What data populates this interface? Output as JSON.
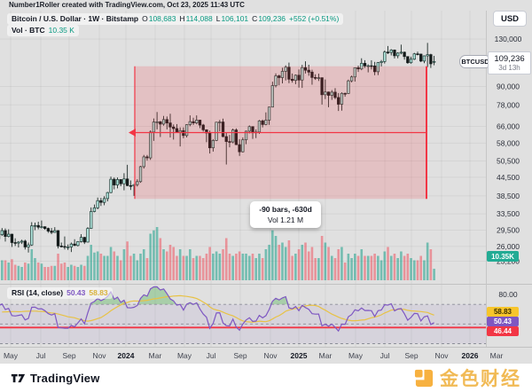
{
  "header": {
    "attribution": "Number1Roller created with TradingView.com, Oct 23, 2025 11:43 UTC"
  },
  "toolbar": {
    "currency_button": "USD"
  },
  "legend": {
    "symbol_line": {
      "title": "Bitcoin / U.S. Dollar · 1W · Bitstamp",
      "o_label": "O",
      "o": "108,683",
      "h_label": "H",
      "h": "114,088",
      "l_label": "L",
      "l": "106,101",
      "c_label": "C",
      "c": "109,236",
      "change": "+552 (+0.51%)"
    },
    "volume_line": {
      "label": "Vol · BTC",
      "value": "10.35 K"
    },
    "rsi_line": {
      "label": "RSI (14, close)",
      "rsi_value": "50.43",
      "ma_value": "58.83"
    }
  },
  "price_axis": {
    "labels": [
      {
        "value": 130000,
        "text": "130,000"
      },
      {
        "value": 90000,
        "text": "90,000"
      },
      {
        "value": 78000,
        "text": "78,000"
      },
      {
        "value": 66000,
        "text": "66,000"
      },
      {
        "value": 58000,
        "text": "58,000"
      },
      {
        "value": 50500,
        "text": "50,500"
      },
      {
        "value": 44500,
        "text": "44,500"
      },
      {
        "value": 38500,
        "text": "38,500"
      },
      {
        "value": 33500,
        "text": "33,500"
      },
      {
        "value": 29500,
        "text": "29,500"
      },
      {
        "value": 26000,
        "text": "26,000"
      },
      {
        "value": 23200,
        "text": "23,200"
      }
    ],
    "symbol_badge": "BTCUSD",
    "last_price": {
      "text": "109,236",
      "countdown": "3d 13h"
    },
    "volume_badge": "10.35K",
    "rsi_axis_label": {
      "value": 80,
      "text": "80.00"
    },
    "rsi_badges": [
      {
        "text": "58.83",
        "bg": "#f7c52b",
        "fg": "#3d3000"
      },
      {
        "text": "50.43",
        "bg": "#7e57c2",
        "fg": "#ffffff"
      },
      {
        "text": "46.44",
        "bg": "#f23645",
        "fg": "#ffffff"
      }
    ]
  },
  "time_axis": {
    "labels": [
      {
        "text": "May",
        "bold": false
      },
      {
        "text": "Jul",
        "bold": false
      },
      {
        "text": "Sep",
        "bold": false
      },
      {
        "text": "Nov",
        "bold": false
      },
      {
        "text": "2024",
        "bold": true
      },
      {
        "text": "Mar",
        "bold": false
      },
      {
        "text": "May",
        "bold": false
      },
      {
        "text": "Jul",
        "bold": false
      },
      {
        "text": "Sep",
        "bold": false
      },
      {
        "text": "Nov",
        "bold": false
      },
      {
        "text": "2025",
        "bold": true
      },
      {
        "text": "Mar",
        "bold": false
      },
      {
        "text": "May",
        "bold": false
      },
      {
        "text": "Jul",
        "bold": false
      },
      {
        "text": "Sep",
        "bold": false
      },
      {
        "text": "Nov",
        "bold": false
      },
      {
        "text": "2026",
        "bold": true
      },
      {
        "text": "Mar",
        "bold": false
      }
    ]
  },
  "drawing": {
    "range_tool": {
      "line1": "-90 bars, -630d",
      "line2": "Vol 1.21 M"
    }
  },
  "footer": {
    "logo_text": "TradingView",
    "watermark": "金色财经"
  },
  "chart_data": {
    "type": "candlestick+volume+rsi",
    "symbol": "BTCUSD",
    "interval": "1W",
    "scale": "log",
    "pre_bars": 28,
    "ohlcv_k": [
      [
        19.6,
        20.4,
        18.9,
        19.4,
        16
      ],
      [
        19.4,
        21.0,
        19.1,
        20.9,
        18
      ],
      [
        20.9,
        21.4,
        15.6,
        16.3,
        30
      ],
      [
        16.3,
        17.2,
        15.8,
        16.7,
        22
      ],
      [
        16.7,
        17.4,
        16.4,
        16.5,
        16
      ],
      [
        16.5,
        17.0,
        16.3,
        17.1,
        14
      ],
      [
        17.1,
        17.3,
        16.6,
        16.9,
        12
      ],
      [
        16.9,
        17.1,
        16.5,
        16.6,
        11
      ],
      [
        16.6,
        16.8,
        16.3,
        16.5,
        10
      ],
      [
        16.5,
        17.1,
        16.4,
        17.0,
        11
      ],
      [
        17.0,
        18.0,
        16.9,
        17.9,
        13
      ],
      [
        17.9,
        21.1,
        17.8,
        20.9,
        20
      ],
      [
        20.9,
        23.1,
        20.6,
        22.7,
        24
      ],
      [
        22.7,
        23.4,
        22.3,
        23.0,
        18
      ],
      [
        23.0,
        23.6,
        22.4,
        23.1,
        16
      ],
      [
        23.1,
        24.2,
        22.7,
        23.5,
        16
      ],
      [
        23.5,
        23.6,
        21.4,
        21.9,
        18
      ],
      [
        21.9,
        23.2,
        21.5,
        22.4,
        15
      ],
      [
        22.4,
        23.4,
        21.7,
        23.3,
        14
      ],
      [
        23.3,
        23.9,
        22.1,
        22.4,
        15
      ],
      [
        22.4,
        22.8,
        19.6,
        20.5,
        22
      ],
      [
        20.5,
        22.2,
        20.1,
        22.0,
        18
      ],
      [
        22.0,
        26.5,
        21.9,
        26.3,
        28
      ],
      [
        26.3,
        28.4,
        26.1,
        27.5,
        26
      ],
      [
        27.5,
        28.8,
        27.2,
        28.0,
        20
      ],
      [
        28.0,
        28.6,
        27.1,
        27.6,
        16
      ],
      [
        27.6,
        29.1,
        27.3,
        28.5,
        17
      ],
      [
        28.5,
        30.0,
        28.2,
        29.4,
        18
      ],
      [
        29.4,
        29.9,
        27.0,
        28.1,
        18
      ],
      [
        28.1,
        29.7,
        27.9,
        28.6,
        16
      ],
      [
        28.6,
        28.7,
        25.9,
        26.8,
        19
      ],
      [
        26.8,
        27.7,
        26.1,
        26.7,
        14
      ],
      [
        26.7,
        27.1,
        25.8,
        26.9,
        13
      ],
      [
        26.9,
        27.4,
        26.5,
        27.1,
        12
      ],
      [
        27.1,
        27.4,
        25.4,
        25.9,
        16
      ],
      [
        25.9,
        26.8,
        24.8,
        26.3,
        15
      ],
      [
        26.3,
        31.4,
        26.1,
        30.5,
        28
      ],
      [
        30.5,
        31.3,
        29.5,
        30.6,
        20
      ],
      [
        30.6,
        31.5,
        29.7,
        30.2,
        16
      ],
      [
        30.2,
        31.8,
        29.9,
        30.3,
        15
      ],
      [
        30.3,
        30.4,
        29.6,
        29.9,
        12
      ],
      [
        29.9,
        30.1,
        28.9,
        29.3,
        12
      ],
      [
        29.3,
        30.0,
        28.6,
        29.0,
        13
      ],
      [
        29.0,
        30.2,
        28.9,
        29.4,
        13
      ],
      [
        29.4,
        29.5,
        25.6,
        26.1,
        24
      ],
      [
        26.1,
        26.8,
        25.8,
        26.0,
        15
      ],
      [
        26.0,
        28.1,
        25.4,
        25.9,
        16
      ],
      [
        25.9,
        26.4,
        25.3,
        25.9,
        12
      ],
      [
        25.9,
        26.8,
        24.9,
        26.5,
        14
      ],
      [
        26.5,
        27.5,
        26.1,
        26.2,
        13
      ],
      [
        26.2,
        27.1,
        26.0,
        27.0,
        12
      ],
      [
        27.0,
        28.6,
        26.8,
        27.9,
        14
      ],
      [
        27.9,
        28.0,
        26.5,
        26.9,
        13
      ],
      [
        26.9,
        30.2,
        26.8,
        29.9,
        22
      ],
      [
        29.9,
        35.2,
        29.8,
        34.1,
        32
      ],
      [
        34.1,
        36.0,
        33.9,
        35.1,
        25
      ],
      [
        35.1,
        38.0,
        34.7,
        37.1,
        26
      ],
      [
        37.1,
        37.9,
        35.6,
        36.6,
        24
      ],
      [
        36.6,
        38.4,
        35.8,
        37.7,
        22
      ],
      [
        37.7,
        39.7,
        36.9,
        39.5,
        22
      ],
      [
        39.5,
        44.7,
        39.3,
        43.8,
        30
      ],
      [
        43.8,
        44.4,
        40.5,
        41.9,
        26
      ],
      [
        41.9,
        44.4,
        40.8,
        43.7,
        22
      ],
      [
        43.7,
        43.8,
        41.5,
        42.3,
        18
      ],
      [
        42.3,
        45.9,
        40.2,
        43.9,
        28
      ],
      [
        43.9,
        49.0,
        41.5,
        41.7,
        35
      ],
      [
        41.7,
        43.4,
        40.3,
        41.6,
        22
      ],
      [
        41.6,
        42.2,
        38.5,
        42.0,
        24
      ],
      [
        42.0,
        43.8,
        41.4,
        43.0,
        18
      ],
      [
        43.0,
        48.6,
        42.6,
        48.3,
        24
      ],
      [
        48.3,
        52.9,
        47.6,
        52.1,
        28
      ],
      [
        52.1,
        52.9,
        50.6,
        51.7,
        20
      ],
      [
        51.7,
        64.0,
        50.9,
        63.2,
        42
      ],
      [
        63.2,
        70.2,
        59.0,
        68.3,
        45
      ],
      [
        68.3,
        73.8,
        64.5,
        68.4,
        48
      ],
      [
        68.4,
        68.9,
        60.8,
        67.2,
        38
      ],
      [
        67.2,
        71.6,
        66.4,
        69.6,
        28
      ],
      [
        69.6,
        71.3,
        64.5,
        67.8,
        26
      ],
      [
        67.8,
        72.8,
        60.6,
        65.7,
        32
      ],
      [
        65.7,
        67.0,
        59.6,
        64.9,
        30
      ],
      [
        64.9,
        67.2,
        62.8,
        63.1,
        22
      ],
      [
        63.1,
        65.5,
        56.5,
        63.9,
        28
      ],
      [
        63.9,
        65.5,
        60.2,
        61.5,
        22
      ],
      [
        61.5,
        67.1,
        60.6,
        66.9,
        22
      ],
      [
        66.9,
        71.9,
        66.1,
        68.5,
        28
      ],
      [
        68.5,
        70.6,
        66.7,
        67.8,
        20
      ],
      [
        67.8,
        71.9,
        67.1,
        69.3,
        22
      ],
      [
        69.3,
        69.5,
        65.1,
        66.7,
        22
      ],
      [
        66.7,
        67.3,
        63.4,
        64.3,
        20
      ],
      [
        64.3,
        64.5,
        58.4,
        62.7,
        24
      ],
      [
        62.7,
        63.9,
        53.5,
        55.9,
        30
      ],
      [
        55.9,
        59.8,
        54.3,
        59.2,
        24
      ],
      [
        59.2,
        68.4,
        58.9,
        68.2,
        26
      ],
      [
        68.2,
        69.4,
        63.5,
        68.3,
        24
      ],
      [
        68.3,
        70.1,
        60.7,
        61.0,
        28
      ],
      [
        61.0,
        62.7,
        49.1,
        58.7,
        38
      ],
      [
        58.7,
        61.8,
        56.1,
        58.5,
        24
      ],
      [
        58.5,
        64.9,
        57.9,
        64.2,
        22
      ],
      [
        64.2,
        65.0,
        57.1,
        57.3,
        24
      ],
      [
        57.3,
        59.8,
        52.5,
        54.2,
        26
      ],
      [
        54.2,
        60.6,
        53.9,
        59.5,
        24
      ],
      [
        59.5,
        63.9,
        57.5,
        63.6,
        24
      ],
      [
        63.6,
        66.5,
        62.5,
        65.9,
        22
      ],
      [
        65.9,
        66.0,
        59.9,
        62.8,
        24
      ],
      [
        62.8,
        64.5,
        60.3,
        63.2,
        20
      ],
      [
        63.2,
        69.4,
        62.3,
        68.9,
        24
      ],
      [
        68.9,
        69.6,
        65.5,
        67.0,
        20
      ],
      [
        67.0,
        73.6,
        66.6,
        69.3,
        28
      ],
      [
        69.3,
        76.9,
        66.8,
        76.7,
        32
      ],
      [
        76.7,
        93.4,
        76.5,
        90.6,
        45
      ],
      [
        90.6,
        99.6,
        89.4,
        97.7,
        40
      ],
      [
        97.7,
        98.6,
        90.8,
        96.4,
        32
      ],
      [
        96.4,
        104.1,
        92.2,
        101.2,
        34
      ],
      [
        101.2,
        106.0,
        94.3,
        104.5,
        30
      ],
      [
        104.5,
        108.3,
        92.3,
        95.2,
        36
      ],
      [
        95.2,
        99.5,
        92.7,
        94.3,
        22
      ],
      [
        94.3,
        98.8,
        91.6,
        98.2,
        24
      ],
      [
        98.2,
        102.7,
        89.2,
        94.6,
        28
      ],
      [
        94.6,
        106.4,
        89.0,
        104.2,
        32
      ],
      [
        104.2,
        109.4,
        99.5,
        102.1,
        34
      ],
      [
        102.1,
        106.5,
        97.8,
        100.6,
        26
      ],
      [
        100.6,
        102.5,
        91.2,
        96.5,
        30
      ],
      [
        96.5,
        98.9,
        94.7,
        96.1,
        20
      ],
      [
        96.1,
        99.4,
        93.9,
        96.3,
        20
      ],
      [
        96.3,
        96.5,
        78.2,
        84.4,
        40
      ],
      [
        84.4,
        95.0,
        81.6,
        86.2,
        34
      ],
      [
        86.2,
        86.5,
        76.6,
        84.0,
        30
      ],
      [
        84.0,
        87.5,
        81.1,
        86.1,
        22
      ],
      [
        86.1,
        88.8,
        81.6,
        82.6,
        20
      ],
      [
        82.6,
        85.5,
        74.4,
        78.4,
        28
      ],
      [
        78.4,
        86.0,
        74.6,
        85.3,
        30
      ],
      [
        85.3,
        85.8,
        83.1,
        85.2,
        16
      ],
      [
        85.2,
        94.9,
        84.9,
        94.0,
        24
      ],
      [
        94.0,
        97.9,
        92.9,
        96.9,
        20
      ],
      [
        96.9,
        104.3,
        93.5,
        104.1,
        24
      ],
      [
        104.1,
        105.8,
        100.7,
        103.1,
        22
      ],
      [
        103.1,
        112.0,
        102.1,
        107.7,
        28
      ],
      [
        107.7,
        110.3,
        103.9,
        105.6,
        22
      ],
      [
        105.6,
        106.8,
        100.4,
        105.7,
        22
      ],
      [
        105.7,
        110.3,
        102.7,
        105.5,
        22
      ],
      [
        105.5,
        108.9,
        98.2,
        100.9,
        24
      ],
      [
        100.9,
        108.8,
        98.3,
        108.3,
        22
      ],
      [
        108.3,
        110.5,
        105.1,
        109.2,
        18
      ],
      [
        109.2,
        118.9,
        107.5,
        117.5,
        26
      ],
      [
        117.5,
        123.2,
        115.7,
        117.2,
        30
      ],
      [
        117.2,
        120.2,
        114.5,
        119.4,
        22
      ],
      [
        119.4,
        119.8,
        111.9,
        114.2,
        24
      ],
      [
        114.2,
        117.4,
        112.0,
        116.6,
        20
      ],
      [
        116.6,
        124.5,
        115.5,
        117.4,
        26
      ],
      [
        117.4,
        118.0,
        110.8,
        113.5,
        22
      ],
      [
        113.5,
        113.6,
        107.3,
        108.2,
        24
      ],
      [
        108.2,
        113.4,
        107.4,
        111.2,
        20
      ],
      [
        111.2,
        116.8,
        110.5,
        115.9,
        18
      ],
      [
        115.9,
        117.9,
        114.6,
        115.7,
        18
      ],
      [
        115.7,
        116.1,
        108.7,
        109.6,
        22
      ],
      [
        109.6,
        114.5,
        107.8,
        114.1,
        18
      ],
      [
        114.1,
        126.2,
        104.6,
        115.2,
        34
      ],
      [
        115.2,
        116.0,
        103.9,
        107.3,
        28
      ],
      [
        108.683,
        114.088,
        106.101,
        109.236,
        10.35
      ]
    ],
    "rsi": {
      "length": 14,
      "overbought": 70,
      "middle": 50,
      "oversold": 30,
      "hline": 46.44
    },
    "range_drawing": {
      "bars": -90,
      "days": -630,
      "volume": "1.21 M"
    },
    "colors": {
      "up_body": "#b3e7df",
      "up_border": "#1d3a35",
      "down_body": "#141b1b",
      "wick": "#1c2a27",
      "vol_up": "rgba(8,153,129,0.5)",
      "vol_down": "rgba(242,54,69,0.45)",
      "rsi_line": "#7e57c2",
      "rsi_ma": "#e8c245",
      "rsi_band": "rgba(126,87,194,0.09)",
      "rsi_fill_over": "rgba(76,175,80,0.38)",
      "range_red": "#f23645",
      "range_fill": "rgba(242,54,69,0.18)",
      "accent_teal": "#089981",
      "dashed_gray": "#8c8f99"
    }
  }
}
